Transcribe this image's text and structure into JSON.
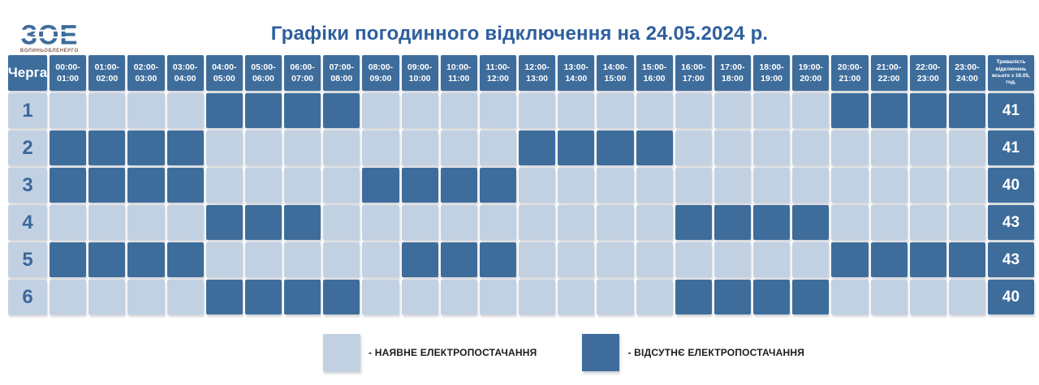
{
  "logo": {
    "text": "ЗОЕ",
    "subtext": "ВОЛИНЬОБЛЕНЕРГО"
  },
  "title": "Графіки погодинного відключення на 24.05.2024 р.",
  "table": {
    "queue_header": "Черга",
    "duration_header": "Тривалість відключень всього з 16.05, год."
  },
  "legend": [
    {
      "swatch": "available",
      "label": "- НАЯВНЕ ЕЛЕКТРОПОСТАЧАННЯ"
    },
    {
      "swatch": "absent",
      "label": "- ВІДСУТНЄ ЕЛЕКТРОПОСТАЧАННЯ"
    }
  ],
  "colors": {
    "available": "#c2d1e2",
    "absent": "#3e6d9c",
    "title": "#2e5f9e",
    "queue_number": "#3a689c",
    "legend_text": "#1a1a1a"
  },
  "chart_data": {
    "type": "heatmap",
    "title": "Графіки погодинного відключення на 24.05.2024 р.",
    "row_labels": [
      "1",
      "2",
      "3",
      "4",
      "5",
      "6"
    ],
    "col_labels": [
      "00:00-01:00",
      "01:00-02:00",
      "02:00-03:00",
      "03:00-04:00",
      "04:00-05:00",
      "05:00-06:00",
      "06:00-07:00",
      "07:00-08:00",
      "08:00-09:00",
      "09:00-10:00",
      "10:00-11:00",
      "11:00-12:00",
      "12:00-13:00",
      "13:00-14:00",
      "14:00-15:00",
      "15:00-16:00",
      "16:00-17:00",
      "17:00-18:00",
      "18:00-19:00",
      "19:00-20:00",
      "20:00-21:00",
      "21:00-22:00",
      "22:00-23:00",
      "23:00-24:00"
    ],
    "value_meaning": {
      "0": "наявне електропостачання",
      "1": "відсутнє електропостачання"
    },
    "matrix": [
      [
        0,
        0,
        0,
        0,
        1,
        1,
        1,
        1,
        0,
        0,
        0,
        0,
        0,
        0,
        0,
        0,
        0,
        0,
        0,
        0,
        1,
        1,
        1,
        1
      ],
      [
        1,
        1,
        1,
        1,
        0,
        0,
        0,
        0,
        0,
        0,
        0,
        0,
        1,
        1,
        1,
        1,
        0,
        0,
        0,
        0,
        0,
        0,
        0,
        0
      ],
      [
        1,
        1,
        1,
        1,
        0,
        0,
        0,
        0,
        1,
        1,
        1,
        1,
        0,
        0,
        0,
        0,
        0,
        0,
        0,
        0,
        0,
        0,
        0,
        0
      ],
      [
        0,
        0,
        0,
        0,
        1,
        1,
        1,
        0,
        0,
        0,
        0,
        0,
        0,
        0,
        0,
        0,
        1,
        1,
        1,
        1,
        0,
        0,
        0,
        0
      ],
      [
        1,
        1,
        1,
        1,
        0,
        0,
        0,
        0,
        0,
        1,
        1,
        1,
        0,
        0,
        0,
        0,
        0,
        0,
        0,
        0,
        1,
        1,
        1,
        1
      ],
      [
        0,
        0,
        0,
        0,
        1,
        1,
        1,
        1,
        0,
        0,
        0,
        0,
        0,
        0,
        0,
        0,
        1,
        1,
        1,
        1,
        0,
        0,
        0,
        0
      ]
    ],
    "row_totals": [
      "41",
      "41",
      "40",
      "43",
      "43",
      "40"
    ],
    "legend_position": "bottom"
  }
}
